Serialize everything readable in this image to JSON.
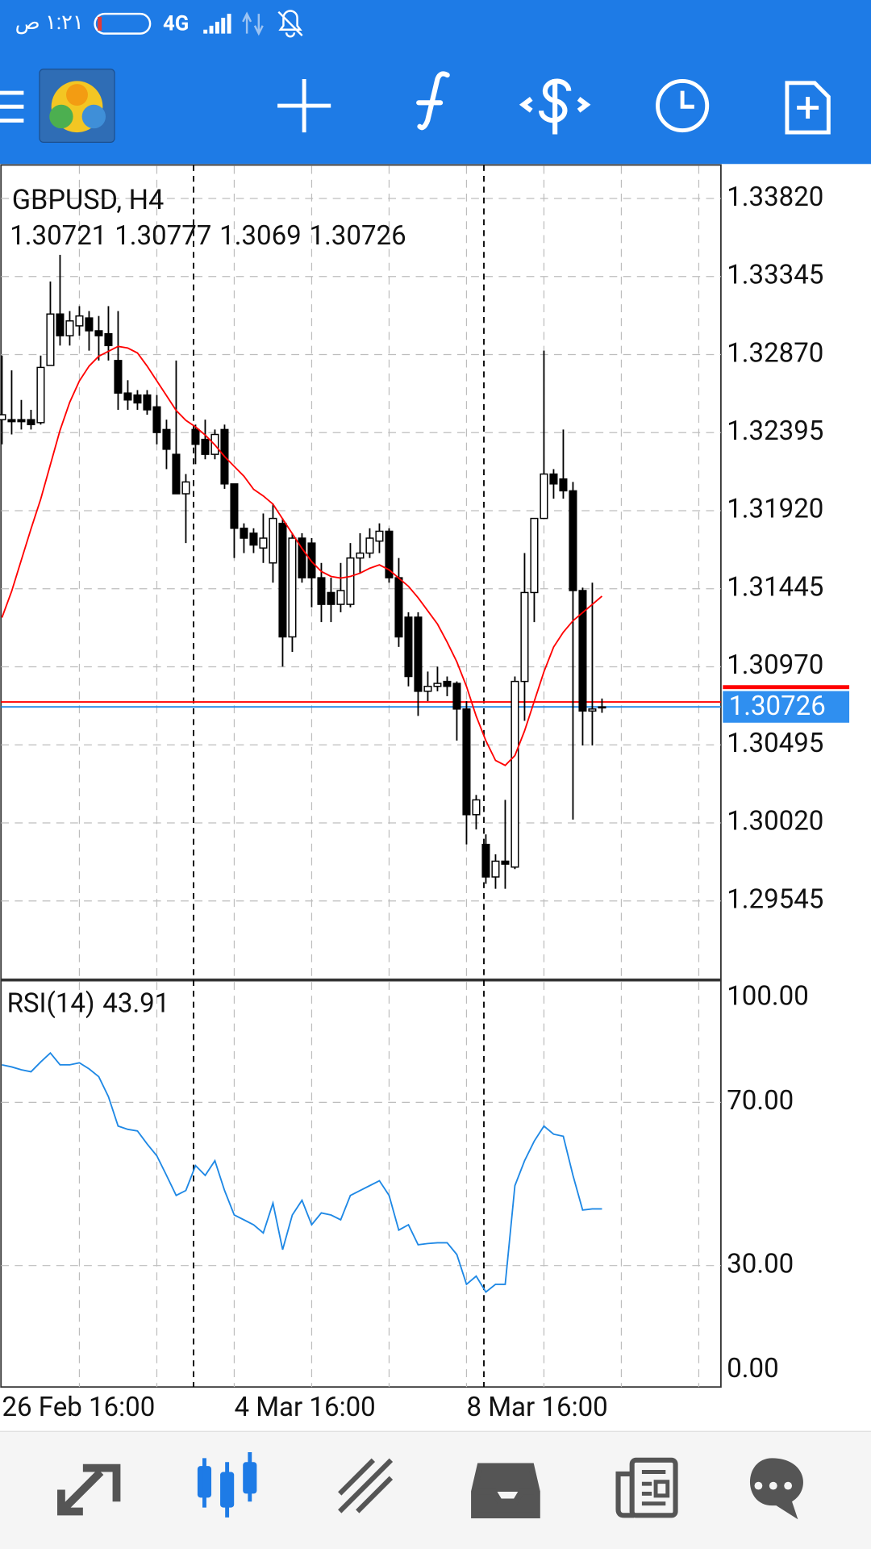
{
  "status_bar": {
    "time": "١:٢١ ص",
    "network": "4G"
  },
  "chart_data": {
    "type": "candlestick",
    "title": "GBPUSD, H4",
    "categories": [
      "26 Feb 16:00",
      null,
      null,
      null,
      null,
      null,
      null,
      null,
      null,
      null,
      null,
      null,
      null,
      null,
      null,
      null,
      null,
      null,
      null,
      null,
      null,
      null,
      null,
      null,
      "4 Mar 16:00",
      null,
      null,
      null,
      null,
      null,
      null,
      null,
      null,
      null,
      null,
      null,
      null,
      null,
      null,
      null,
      null,
      null,
      null,
      null,
      null,
      null,
      null,
      null,
      "8 Mar 16:00",
      null,
      null,
      null,
      null,
      null,
      null,
      null,
      null,
      null,
      null,
      null,
      null,
      null,
      null
    ],
    "open": [
      1.32474,
      1.32474,
      1.32474,
      1.32474,
      1.32456,
      1.32804,
      1.33117,
      1.32985,
      1.33045,
      1.33093,
      1.33015,
      1.32997,
      1.32834,
      1.32636,
      1.32624,
      1.32624,
      1.32552,
      1.32414,
      1.32263,
      1.32023,
      1.32414,
      1.32354,
      1.32263,
      1.32414,
      1.32083,
      1.31813,
      1.31783,
      1.31693,
      1.31602,
      1.31843,
      1.31152,
      1.31753,
      1.31723,
      1.31512,
      1.31422,
      1.3135,
      1.3135,
      1.31632,
      1.31662,
      1.31735,
      1.31795,
      1.31512,
      1.31272,
      1.31272,
      1.30821,
      1.30851,
      1.30881,
      1.30869,
      1.30713,
      1.3007,
      1.29889,
      1.29691,
      1.29787,
      1.29751,
      1.30881,
      1.31422,
      1.31873,
      1.32143,
      1.32113,
      1.32041,
      1.31434,
      1.30701,
      1.30721
    ],
    "high": [
      1.32864,
      1.32774,
      1.32594,
      1.32534,
      1.32864,
      1.33315,
      1.33477,
      1.33135,
      1.33165,
      1.33135,
      1.33105,
      1.33165,
      1.33135,
      1.32714,
      1.32654,
      1.32654,
      1.32624,
      1.32474,
      1.32834,
      1.32143,
      1.32444,
      1.32474,
      1.32414,
      1.32444,
      1.32083,
      1.31843,
      1.31813,
      1.31903,
      1.31963,
      1.31873,
      1.31783,
      1.31783,
      1.31753,
      1.31602,
      1.31512,
      1.31602,
      1.31723,
      1.31783,
      1.31813,
      1.31843,
      1.31813,
      1.31632,
      1.31302,
      1.31302,
      1.30941,
      1.30971,
      1.30911,
      1.30881,
      1.30761,
      1.3019,
      1.2995,
      1.29829,
      1.3016,
      1.30911,
      1.31662,
      1.31873,
      1.32894,
      1.32173,
      1.32414,
      1.32095,
      1.31452,
      1.31482,
      1.30777
    ],
    "low": [
      1.32324,
      1.32384,
      1.32414,
      1.32414,
      1.32444,
      1.32804,
      1.32925,
      1.32925,
      1.32985,
      1.32894,
      1.32834,
      1.32834,
      1.32534,
      1.32534,
      1.32534,
      1.32504,
      1.32324,
      1.32173,
      1.32023,
      1.31723,
      1.32203,
      1.32233,
      1.32233,
      1.32053,
      1.31632,
      1.31662,
      1.31662,
      1.31602,
      1.31482,
      1.30971,
      1.31061,
      1.31482,
      1.31332,
      1.31242,
      1.31242,
      1.31302,
      1.31332,
      1.31542,
      1.31632,
      1.31662,
      1.31482,
      1.31091,
      1.30851,
      1.30671,
      1.30761,
      1.30821,
      1.30791,
      1.30521,
      1.29889,
      1.2998,
      1.29649,
      1.29619,
      1.29619,
      1.29739,
      1.30641,
      1.31242,
      1.31873,
      1.31993,
      1.31993,
      1.3004,
      1.30491,
      1.30491,
      1.3069
    ],
    "close": [
      1.32504,
      1.32462,
      1.32462,
      1.32444,
      1.32792,
      1.33117,
      1.32985,
      1.33075,
      1.33105,
      1.33015,
      1.32985,
      1.32925,
      1.32636,
      1.32594,
      1.32576,
      1.32534,
      1.32396,
      1.32294,
      1.32023,
      1.32095,
      1.32324,
      1.32263,
      1.32384,
      1.32083,
      1.31813,
      1.31753,
      1.31711,
      1.31753,
      1.31873,
      1.31152,
      1.31753,
      1.31512,
      1.31512,
      1.3135,
      1.3135,
      1.31434,
      1.31632,
      1.31662,
      1.31753,
      1.31795,
      1.31512,
      1.31152,
      1.30911,
      1.30821,
      1.30851,
      1.30869,
      1.30851,
      1.30713,
      1.3007,
      1.3016,
      1.29691,
      1.29787,
      1.29769,
      1.30881,
      1.31422,
      1.31873,
      1.32143,
      1.32083,
      1.32041,
      1.31434,
      1.30701,
      1.30713,
      1.30726
    ],
    "up_color": "#ffffff",
    "down_color": "#000000",
    "ma": [
      1.3127,
      1.3143,
      1.3162,
      1.3181,
      1.3199,
      1.322,
      1.3241,
      1.3258,
      1.3271,
      1.328,
      1.3286,
      1.3289,
      1.3292,
      1.3291,
      1.3288,
      1.328,
      1.3271,
      1.3262,
      1.3253,
      1.3247,
      1.3243,
      1.3238,
      1.3232,
      1.3225,
      1.3219,
      1.3213,
      1.3205,
      1.3201,
      1.3196,
      1.3187,
      1.3178,
      1.3169,
      1.3161,
      1.3155,
      1.3152,
      1.3151,
      1.3152,
      1.3154,
      1.3157,
      1.3159,
      1.3156,
      1.3151,
      1.3146,
      1.3139,
      1.3131,
      1.3123,
      1.3112,
      1.31,
      1.3085,
      1.3067,
      1.3052,
      1.304,
      1.3037,
      1.3043,
      1.3058,
      1.3076,
      1.3094,
      1.3109,
      1.3118,
      1.3125,
      1.313,
      1.3135,
      1.314
    ],
    "ma_color": "#ff0000",
    "bid_color": "#1e88e5",
    "ask": 1.30756,
    "ask_color": "#ff0000",
    "ylim": [
      1.29076,
      1.34018
    ],
    "yticks": [
      {
        "value": 1.3382,
        "label": "1.33820"
      },
      1.33345,
      {
        "value": 1.3287,
        "label": "1.32870"
      },
      1.32395,
      {
        "value": 1.3192,
        "label": "1.31920"
      },
      1.31445,
      {
        "value": 1.3097,
        "label": "1.30970"
      },
      1.30495,
      {
        "value": 1.3002,
        "label": "1.30020"
      },
      1.29545
    ],
    "grid": true,
    "indicator": {
      "type": "line",
      "title": "RSI(14)",
      "color": "#1e88e5",
      "ylim": [
        0,
        100
      ],
      "yticks": [
        {
          "value": 100,
          "label": "100.00"
        },
        {
          "value": 70,
          "label": "70.00"
        },
        {
          "value": 30,
          "label": "30.00"
        },
        {
          "value": 0,
          "label": "0.00"
        }
      ],
      "values": [
        79.2,
        78.7,
        78.0,
        77.5,
        79.9,
        82.1,
        79.2,
        79.2,
        79.7,
        78.2,
        76.3,
        71.4,
        64.2,
        63.4,
        63.0,
        59.8,
        56.9,
        52.1,
        47.2,
        48.4,
        54.5,
        52.1,
        55.7,
        48.4,
        42.4,
        41.2,
        40.0,
        38.0,
        45.3,
        33.9,
        42.4,
        46.0,
        40.0,
        42.9,
        42.4,
        41.2,
        47.2,
        48.4,
        49.6,
        50.8,
        47.2,
        38.7,
        40.0,
        35.1,
        35.4,
        35.6,
        35.6,
        32.7,
        25.4,
        27.4,
        23.5,
        25.4,
        25.4,
        49.6,
        55.7,
        60.5,
        64.2,
        62.2,
        61.7,
        52.1,
        43.6,
        43.91,
        43.91
      ]
    }
  }
}
